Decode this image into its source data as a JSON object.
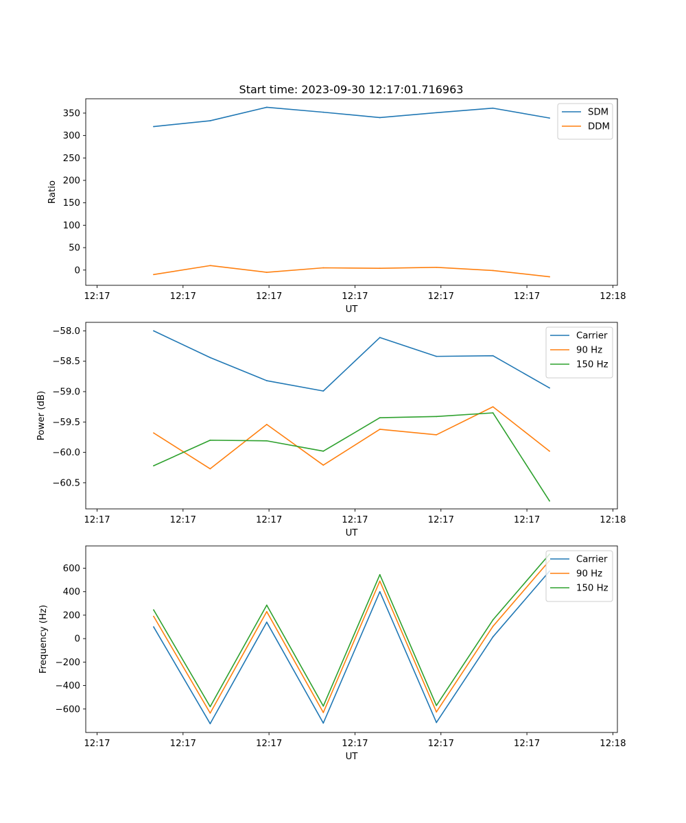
{
  "chart_data": [
    {
      "type": "line",
      "title": "Start time: 2023-09-30 12:17:01.716963",
      "xlabel": "UT",
      "ylabel": "Ratio",
      "x": [
        0.5,
        1.0,
        1.5,
        2.0,
        2.5,
        3.0,
        3.5,
        4.0
      ],
      "xlim": [
        -0.1,
        4.6
      ],
      "x_ticks": [
        0,
        0.76,
        1.52,
        2.28,
        3.04,
        3.8,
        4.56
      ],
      "x_tick_labels": [
        "12:17",
        "12:17",
        "12:17",
        "12:17",
        "12:17",
        "12:17",
        "12:18"
      ],
      "ylim": [
        -34,
        382
      ],
      "y_ticks": [
        0,
        50,
        100,
        150,
        200,
        250,
        300,
        350
      ],
      "y_tick_labels": [
        "0",
        "50",
        "100",
        "150",
        "200",
        "250",
        "300",
        "350"
      ],
      "legend_position": "upper right",
      "series": [
        {
          "name": "SDM",
          "color": "#1f77b4",
          "values": [
            320,
            333,
            363,
            352,
            340,
            351,
            361,
            339
          ]
        },
        {
          "name": "DDM",
          "color": "#ff7f0e",
          "values": [
            -10,
            10,
            -5,
            5,
            4,
            6,
            -1,
            -15
          ]
        }
      ]
    },
    {
      "type": "line",
      "title": "",
      "xlabel": "UT",
      "ylabel": "Power (dB)",
      "x": [
        0.5,
        1.0,
        1.5,
        2.0,
        2.5,
        3.0,
        3.5,
        4.0
      ],
      "xlim": [
        -0.1,
        4.6
      ],
      "x_ticks": [
        0,
        0.76,
        1.52,
        2.28,
        3.04,
        3.8,
        4.56
      ],
      "x_tick_labels": [
        "12:17",
        "12:17",
        "12:17",
        "12:17",
        "12:17",
        "12:17",
        "12:18"
      ],
      "ylim": [
        -60.93,
        -57.86
      ],
      "y_ticks": [
        -58.0,
        -58.5,
        -59.0,
        -59.5,
        -60.0,
        -60.5
      ],
      "y_tick_labels": [
        "−58.0",
        "−58.5",
        "−59.0",
        "−59.5",
        "−60.0",
        "−60.5"
      ],
      "legend_position": "upper right",
      "series": [
        {
          "name": "Carrier",
          "color": "#1f77b4",
          "values": [
            -58.0,
            -58.44,
            -58.82,
            -58.99,
            -58.11,
            -58.42,
            -58.41,
            -58.94
          ]
        },
        {
          "name": "90 Hz",
          "color": "#ff7f0e",
          "values": [
            -59.68,
            -60.27,
            -59.54,
            -60.21,
            -59.62,
            -59.71,
            -59.25,
            -59.98
          ]
        },
        {
          "name": "150 Hz",
          "color": "#2ca02c",
          "values": [
            -60.22,
            -59.8,
            -59.81,
            -59.98,
            -59.43,
            -59.41,
            -59.35,
            -60.8
          ]
        }
      ]
    },
    {
      "type": "line",
      "title": "",
      "xlabel": "UT",
      "ylabel": "Frequency (Hz)",
      "x": [
        0.5,
        1.0,
        1.5,
        2.0,
        2.5,
        3.0,
        3.5,
        4.0
      ],
      "xlim": [
        -0.1,
        4.6
      ],
      "x_ticks": [
        0,
        0.76,
        1.52,
        2.28,
        3.04,
        3.8,
        4.56
      ],
      "x_tick_labels": [
        "12:17",
        "12:17",
        "12:17",
        "12:17",
        "12:17",
        "12:17",
        "12:18"
      ],
      "ylim": [
        -800,
        790
      ],
      "y_ticks": [
        -600,
        -400,
        -200,
        0,
        200,
        400,
        600
      ],
      "y_tick_labels": [
        "−600",
        "−400",
        "−200",
        "0",
        "200",
        "400",
        "600"
      ],
      "legend_position": "upper right",
      "series": [
        {
          "name": "Carrier",
          "color": "#1f77b4",
          "values": [
            100,
            -725,
            140,
            -720,
            400,
            -715,
            15,
            575
          ]
        },
        {
          "name": "90 Hz",
          "color": "#ff7f0e",
          "values": [
            190,
            -635,
            230,
            -630,
            490,
            -625,
            105,
            665
          ]
        },
        {
          "name": "150 Hz",
          "color": "#2ca02c",
          "values": [
            245,
            -580,
            285,
            -575,
            545,
            -570,
            160,
            720
          ]
        }
      ]
    }
  ]
}
